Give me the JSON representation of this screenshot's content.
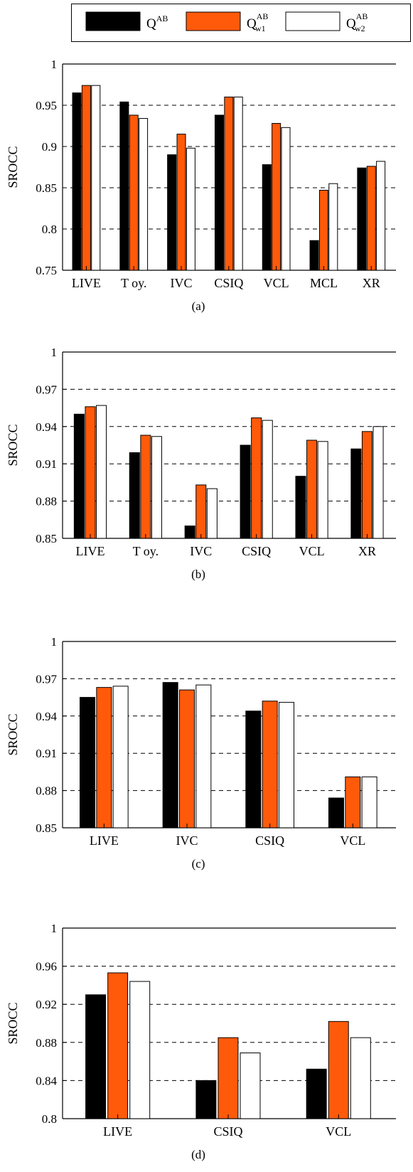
{
  "legend": {
    "items": [
      {
        "base": "Q",
        "sup": "AB",
        "sub": "",
        "color": "#000000"
      },
      {
        "base": "Q",
        "sup": "AB",
        "sub": "w1",
        "color": "#ff5a0a"
      },
      {
        "base": "Q",
        "sup": "AB",
        "sub": "w2",
        "color": "#ffffff"
      }
    ]
  },
  "colors": {
    "q_ab": "#000000",
    "q_w1": "#ff5a0a",
    "q_w2": "#ffffff",
    "outline": "#000000"
  },
  "chart_data": [
    {
      "type": "bar",
      "caption": "(a)",
      "ylabel": "SROCC",
      "ylim": [
        0.75,
        1
      ],
      "yticks": [
        "0.75",
        "0.8",
        "0.85",
        "0.9",
        "0.95",
        "1"
      ],
      "grid": "dashed horizontal",
      "categories": [
        "LIVE",
        "T oy.",
        "IVC",
        "CSIQ",
        "VCL",
        "MCL",
        "XR"
      ],
      "series": [
        {
          "values": [
            0.965,
            0.954,
            0.89,
            0.938,
            0.878,
            0.786,
            0.874
          ]
        },
        {
          "values": [
            0.974,
            0.938,
            0.915,
            0.96,
            0.928,
            0.847,
            0.876
          ]
        },
        {
          "values": [
            0.974,
            0.934,
            0.898,
            0.96,
            0.923,
            0.855,
            0.882
          ]
        }
      ]
    },
    {
      "type": "bar",
      "caption": "(b)",
      "ylabel": "SROCC",
      "ylim": [
        0.85,
        1
      ],
      "yticks": [
        "0.85",
        "0.88",
        "0.91",
        "0.94",
        "0.97",
        "1"
      ],
      "grid": "dashed horizontal",
      "categories": [
        "LIVE",
        "T oy.",
        "IVC",
        "CSIQ",
        "VCL",
        "XR"
      ],
      "series": [
        {
          "values": [
            0.95,
            0.919,
            0.86,
            0.925,
            0.9,
            0.922
          ]
        },
        {
          "values": [
            0.956,
            0.933,
            0.893,
            0.947,
            0.929,
            0.936
          ]
        },
        {
          "values": [
            0.957,
            0.932,
            0.89,
            0.945,
            0.928,
            0.94
          ]
        }
      ]
    },
    {
      "type": "bar",
      "caption": "(c)",
      "ylabel": "SROCC",
      "ylim": [
        0.85,
        1
      ],
      "yticks": [
        "0.85",
        "0.88",
        "0.91",
        "0.94",
        "0.97",
        "1"
      ],
      "grid": "dashed horizontal",
      "categories": [
        "LIVE",
        "IVC",
        "CSIQ",
        "VCL"
      ],
      "series": [
        {
          "values": [
            0.955,
            0.967,
            0.944,
            0.874
          ]
        },
        {
          "values": [
            0.963,
            0.961,
            0.952,
            0.891
          ]
        },
        {
          "values": [
            0.964,
            0.965,
            0.951,
            0.891
          ]
        }
      ]
    },
    {
      "type": "bar",
      "caption": "(d)",
      "ylabel": "SROCC",
      "ylim": [
        0.8,
        1
      ],
      "yticks": [
        "0.8",
        "0.84",
        "0.88",
        "0.92",
        "0.96",
        "1"
      ],
      "grid": "dashed horizontal",
      "categories": [
        "LIVE",
        "CSIQ",
        "VCL"
      ],
      "series": [
        {
          "values": [
            0.93,
            0.84,
            0.852
          ]
        },
        {
          "values": [
            0.953,
            0.885,
            0.902
          ]
        },
        {
          "values": [
            0.944,
            0.869,
            0.885
          ]
        }
      ]
    }
  ]
}
